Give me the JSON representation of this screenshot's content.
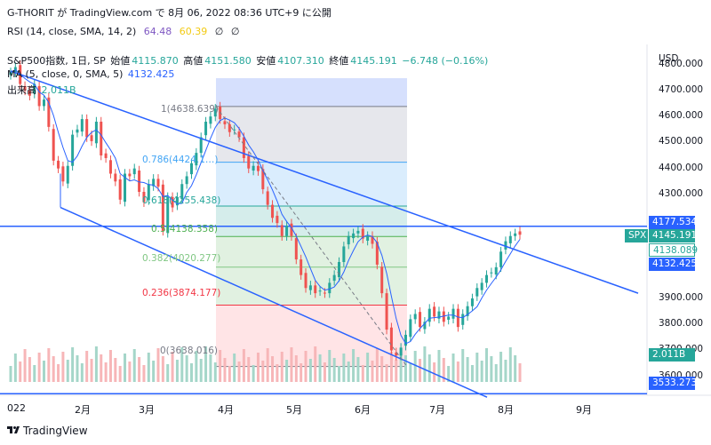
{
  "header": {
    "title": "G-THORIT が TradingView.com で 8月 06, 2022 08:36 UTC+9 に公開"
  },
  "rsi": {
    "label": "RSI (14, close, SMA, 14, 2)",
    "value1": "64.48",
    "value2": "60.39",
    "extra1": "∅",
    "extra2": "∅",
    "color1": "#7e57c2",
    "color2": "#f2ca12"
  },
  "symbol_legend": {
    "name": "S&P500指数, 1日, SP",
    "open_label": "始値",
    "open": "4115.870",
    "high_label": "高値",
    "high": "4151.580",
    "low_label": "安値",
    "low": "4107.310",
    "close_label": "終値",
    "close": "4145.191",
    "change": "−6.748 (−0.16%)"
  },
  "ma_legend": {
    "label": "MA (5, close, 0, SMA, 5)",
    "value": "4132.425"
  },
  "volume_legend": {
    "label": "出来高",
    "value": "2.011B"
  },
  "fib_labels": [
    {
      "text": "1(4638.639)",
      "color": "#787b86"
    },
    {
      "text": "0.786(4424.1…)",
      "color": "#42a5f5"
    },
    {
      "text": "0.618(4255.438)",
      "color": "#26a69a"
    },
    {
      "text": "0.5(4138.358)",
      "color": "#4caf50"
    },
    {
      "text": "0.382(4020.277)",
      "color": "#81c784"
    },
    {
      "text": "0.236(3874.177)",
      "color": "#f23645"
    },
    {
      "text": "0(3638.016)",
      "color": "#787b86"
    }
  ],
  "y_axis": {
    "currency": "USD",
    "ticks": [
      "4800.000",
      "4700.000",
      "4600.000",
      "4500.000",
      "4400.000",
      "4300.000",
      "3900.000",
      "3800.000",
      "3700.000",
      "3600.000"
    ]
  },
  "price_tags": [
    {
      "text": "4177.534",
      "color": "#2962ff"
    },
    {
      "text": "SPX",
      "color": "#26a69a"
    },
    {
      "text": "4145.191",
      "color": "#26a69a"
    },
    {
      "text": "4138.089",
      "color": "#ffffff",
      "fg": "#26a69a"
    },
    {
      "text": "4132.425",
      "color": "#2962ff"
    },
    {
      "text": "2.011B",
      "color": "#26a69a"
    },
    {
      "text": "3533.273",
      "color": "#2962ff"
    }
  ],
  "x_axis": {
    "ticks": [
      "022",
      "2月",
      "3月",
      "4月",
      "5月",
      "6月",
      "7月",
      "8月",
      "9月"
    ]
  },
  "footer": {
    "brand": "TradingView"
  },
  "chart_data": {
    "type": "candlestick",
    "symbol": "S&P500指数",
    "interval": "1日",
    "ylim": [
      3500,
      4850
    ],
    "fibonacci_levels": [
      {
        "ratio": 1,
        "price": 4638.639
      },
      {
        "ratio": 0.786,
        "price": 4424.1
      },
      {
        "ratio": 0.618,
        "price": 4255.438
      },
      {
        "ratio": 0.5,
        "price": 4138.358
      },
      {
        "ratio": 0.382,
        "price": 4020.277
      },
      {
        "ratio": 0.236,
        "price": 3874.177
      },
      {
        "ratio": 0,
        "price": 3638.016
      }
    ],
    "horizontal_lines": [
      4177.534,
      3533.273
    ],
    "closes": [
      4770,
      4790,
      4725,
      4700,
      4680,
      4725,
      4640,
      4665,
      4560,
      4430,
      4400,
      4350,
      4410,
      4530,
      4550,
      4590,
      4520,
      4505,
      4580,
      4450,
      4440,
      4380,
      4350,
      4280,
      4380,
      4370,
      4400,
      4310,
      4270,
      4340,
      4360,
      4330,
      4160,
      4290,
      4250,
      4290,
      4340,
      4370,
      4420,
      4460,
      4520,
      4580,
      4600,
      4630,
      4590,
      4570,
      4540,
      4550,
      4520,
      4440,
      4400,
      4410,
      4390,
      4320,
      4260,
      4210,
      4190,
      4140,
      4180,
      4140,
      4050,
      3990,
      3940,
      3950,
      3920,
      3930,
      3920,
      3960,
      3990,
      4040,
      4100,
      4140,
      4150,
      4160,
      4130,
      4140,
      4110,
      4030,
      3920,
      3780,
      3700,
      3680,
      3710,
      3760,
      3820,
      3840,
      3790,
      3810,
      3860,
      3830,
      3850,
      3810,
      3830,
      3860,
      3790,
      3840,
      3870,
      3900,
      3940,
      3960,
      3990,
      4000,
      4020,
      4080,
      4120,
      4140,
      4150,
      4145
    ],
    "ma5_last": 4132.425,
    "volume_last": "2.011B"
  }
}
